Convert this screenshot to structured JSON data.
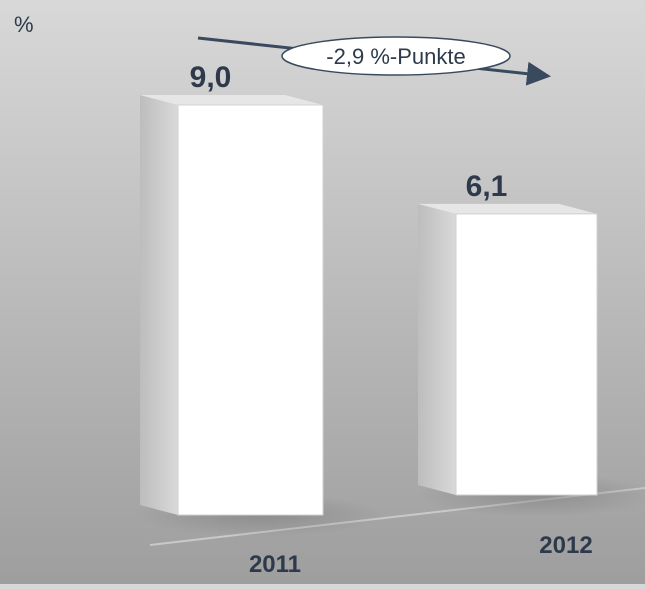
{
  "chart_data": {
    "type": "bar",
    "unit_label": "%",
    "categories": [
      "2011",
      "2012"
    ],
    "values": [
      9.0,
      6.1
    ],
    "value_labels": [
      "9,0",
      "6,1"
    ],
    "annotation": "-2,9 %-Punkte",
    "title": "",
    "xlabel": "",
    "ylabel": "",
    "ylim": [
      0,
      9.0
    ],
    "grid": false,
    "legend": "none",
    "bar_color": "#ffffff",
    "label_color": "#2e3a4c"
  }
}
